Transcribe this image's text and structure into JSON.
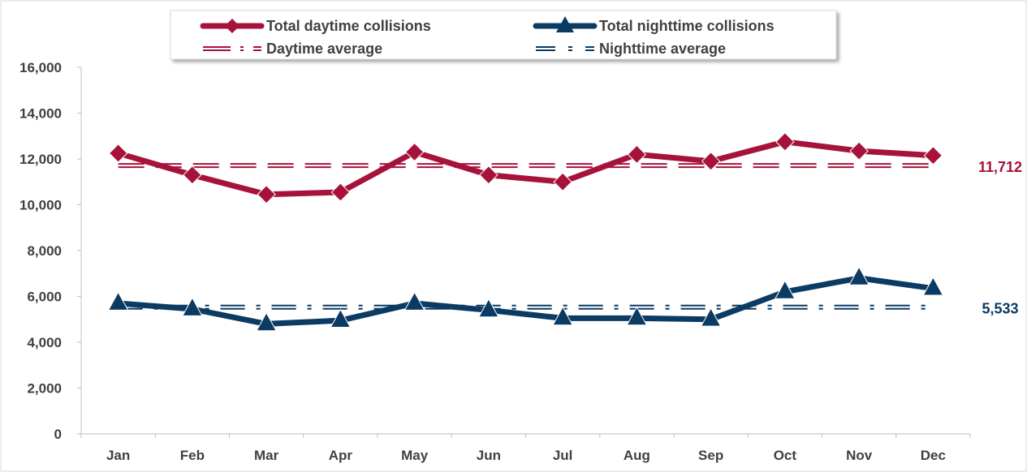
{
  "chart_data": {
    "type": "line",
    "categories": [
      "Jan",
      "Feb",
      "Mar",
      "Apr",
      "May",
      "Jun",
      "Jul",
      "Aug",
      "Sep",
      "Oct",
      "Nov",
      "Dec"
    ],
    "ylim": [
      0,
      16000
    ],
    "yticks": [
      0,
      2000,
      4000,
      6000,
      8000,
      10000,
      12000,
      14000,
      16000
    ],
    "ytick_labels": [
      "0",
      "2,000",
      "4,000",
      "6,000",
      "8,000",
      "10,000",
      "12,000",
      "14,000",
      "16,000"
    ],
    "grid": false,
    "legend_position": "top",
    "series": [
      {
        "name": "Total daytime collisions",
        "values": [
          12250,
          11300,
          10450,
          10550,
          12300,
          11300,
          11000,
          12200,
          11900,
          12750,
          12350,
          12150
        ],
        "color": "#A6123A",
        "marker": "diamond",
        "style": "solid"
      },
      {
        "name": "Total nighttime collisions",
        "values": [
          5700,
          5450,
          4800,
          4950,
          5700,
          5400,
          5050,
          5050,
          5000,
          6200,
          6800,
          6350
        ],
        "color": "#0B3A63",
        "marker": "triangle",
        "style": "solid"
      },
      {
        "name": "Daytime average",
        "values": [
          11712,
          11712,
          11712,
          11712,
          11712,
          11712,
          11712,
          11712,
          11712,
          11712,
          11712,
          11712
        ],
        "color": "#A6123A",
        "style": "dashed",
        "end_label": "11,712"
      },
      {
        "name": "Nighttime average",
        "values": [
          5533,
          5533,
          5533,
          5533,
          5533,
          5533,
          5533,
          5533,
          5533,
          5533,
          5533,
          5533
        ],
        "color": "#0B3A63",
        "style": "dash-dot",
        "end_label": "5,533"
      }
    ]
  }
}
